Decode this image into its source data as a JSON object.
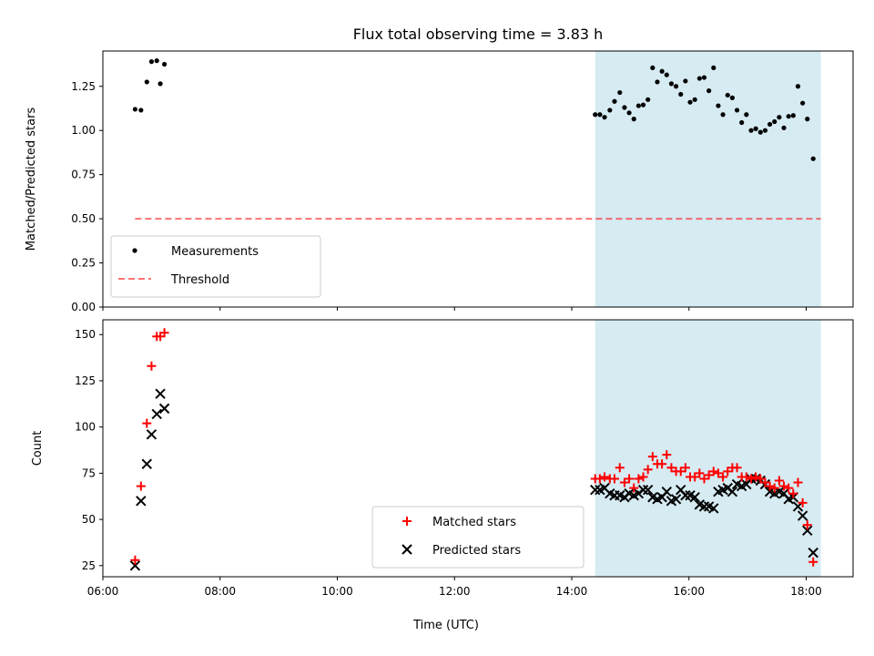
{
  "title": "Flux total observing time = 3.83 h",
  "colors": {
    "shade": "#add8e6",
    "threshold": "#ff0000",
    "measurement": "#000000",
    "matched": "#ff0000",
    "predicted": "#000000"
  },
  "chart_data": [
    {
      "type": "scatter",
      "panel": "top",
      "ylabel": "Matched/Predicted stars",
      "xlim": [
        6.0,
        18.8
      ],
      "ylim": [
        0.0,
        1.45
      ],
      "yticks": [
        0.0,
        0.25,
        0.5,
        0.75,
        1.0,
        1.25
      ],
      "ytick_labels": [
        "0.00",
        "0.25",
        "0.50",
        "0.75",
        "1.00",
        "1.25"
      ],
      "shaded_span": [
        14.4,
        18.25
      ],
      "threshold": {
        "name": "Threshold",
        "value": 0.5,
        "x_range": [
          6.55,
          18.25
        ]
      },
      "legend": {
        "placement": "lower-left",
        "entries": [
          "Measurements",
          "Threshold"
        ]
      },
      "series": [
        {
          "name": "Measurements",
          "marker": "dot",
          "points": [
            [
              6.55,
              1.12
            ],
            [
              6.65,
              1.115
            ],
            [
              6.75,
              1.275
            ],
            [
              6.83,
              1.39
            ],
            [
              6.92,
              1.395
            ],
            [
              6.98,
              1.265
            ],
            [
              7.05,
              1.375
            ],
            [
              14.4,
              1.09
            ],
            [
              14.48,
              1.09
            ],
            [
              14.56,
              1.075
            ],
            [
              14.65,
              1.115
            ],
            [
              14.73,
              1.165
            ],
            [
              14.82,
              1.215
            ],
            [
              14.9,
              1.13
            ],
            [
              14.98,
              1.1
            ],
            [
              15.06,
              1.065
            ],
            [
              15.14,
              1.14
            ],
            [
              15.22,
              1.145
            ],
            [
              15.3,
              1.175
            ],
            [
              15.38,
              1.355
            ],
            [
              15.46,
              1.275
            ],
            [
              15.54,
              1.335
            ],
            [
              15.62,
              1.315
            ],
            [
              15.7,
              1.265
            ],
            [
              15.78,
              1.25
            ],
            [
              15.86,
              1.205
            ],
            [
              15.94,
              1.28
            ],
            [
              16.02,
              1.16
            ],
            [
              16.1,
              1.175
            ],
            [
              16.18,
              1.295
            ],
            [
              16.26,
              1.3
            ],
            [
              16.34,
              1.225
            ],
            [
              16.42,
              1.355
            ],
            [
              16.5,
              1.14
            ],
            [
              16.58,
              1.09
            ],
            [
              16.66,
              1.2
            ],
            [
              16.74,
              1.185
            ],
            [
              16.82,
              1.115
            ],
            [
              16.9,
              1.045
            ],
            [
              16.98,
              1.09
            ],
            [
              17.06,
              1.0
            ],
            [
              17.14,
              1.01
            ],
            [
              17.22,
              0.99
            ],
            [
              17.3,
              1.0
            ],
            [
              17.38,
              1.035
            ],
            [
              17.46,
              1.05
            ],
            [
              17.54,
              1.075
            ],
            [
              17.62,
              1.015
            ],
            [
              17.7,
              1.08
            ],
            [
              17.78,
              1.085
            ],
            [
              17.86,
              1.25
            ],
            [
              17.94,
              1.155
            ],
            [
              18.02,
              1.065
            ],
            [
              18.12,
              0.84
            ]
          ]
        }
      ]
    },
    {
      "type": "scatter",
      "panel": "bottom",
      "xlabel": "Time (UTC)",
      "ylabel": "Count",
      "xlim": [
        6.0,
        18.8
      ],
      "ylim": [
        19,
        158
      ],
      "xticks": [
        6,
        8,
        10,
        12,
        14,
        16,
        18
      ],
      "xtick_labels": [
        "06:00",
        "08:00",
        "10:00",
        "12:00",
        "14:00",
        "16:00",
        "18:00"
      ],
      "yticks": [
        25,
        50,
        75,
        100,
        125,
        150
      ],
      "ytick_labels": [
        "25",
        "50",
        "75",
        "100",
        "125",
        "150"
      ],
      "shaded_span": [
        14.4,
        18.25
      ],
      "legend": {
        "placement": "lower-center",
        "entries": [
          "Matched stars",
          "Predicted stars"
        ]
      },
      "series": [
        {
          "name": "Matched stars",
          "marker": "plus",
          "points": [
            [
              6.55,
              28
            ],
            [
              6.65,
              68
            ],
            [
              6.75,
              102
            ],
            [
              6.83,
              133
            ],
            [
              6.92,
              149
            ],
            [
              6.98,
              149
            ],
            [
              7.05,
              151
            ],
            [
              14.4,
              72
            ],
            [
              14.48,
              72
            ],
            [
              14.56,
              73
            ],
            [
              14.65,
              72
            ],
            [
              14.73,
              72
            ],
            [
              14.82,
              78
            ],
            [
              14.9,
              70
            ],
            [
              14.98,
              72
            ],
            [
              15.06,
              67
            ],
            [
              15.14,
              72
            ],
            [
              15.22,
              73
            ],
            [
              15.3,
              77
            ],
            [
              15.38,
              84
            ],
            [
              15.46,
              80
            ],
            [
              15.54,
              80
            ],
            [
              15.62,
              85
            ],
            [
              15.7,
              78
            ],
            [
              15.78,
              76
            ],
            [
              15.86,
              76
            ],
            [
              15.94,
              78
            ],
            [
              16.02,
              73
            ],
            [
              16.1,
              73
            ],
            [
              16.18,
              75
            ],
            [
              16.26,
              72
            ],
            [
              16.34,
              74
            ],
            [
              16.42,
              76
            ],
            [
              16.5,
              75
            ],
            [
              16.58,
              73
            ],
            [
              16.66,
              76
            ],
            [
              16.74,
              78
            ],
            [
              16.82,
              78
            ],
            [
              16.9,
              73
            ],
            [
              16.98,
              73
            ],
            [
              17.06,
              72
            ],
            [
              17.14,
              73
            ],
            [
              17.22,
              72
            ],
            [
              17.3,
              70
            ],
            [
              17.38,
              68
            ],
            [
              17.46,
              67
            ],
            [
              17.54,
              71
            ],
            [
              17.62,
              68
            ],
            [
              17.7,
              67
            ],
            [
              17.78,
              64
            ],
            [
              17.86,
              70
            ],
            [
              17.94,
              59
            ],
            [
              18.02,
              47
            ],
            [
              18.12,
              27
            ]
          ]
        },
        {
          "name": "Predicted stars",
          "marker": "x",
          "points": [
            [
              6.55,
              25
            ],
            [
              6.65,
              60
            ],
            [
              6.75,
              80
            ],
            [
              6.83,
              96
            ],
            [
              6.92,
              107
            ],
            [
              6.98,
              118
            ],
            [
              7.05,
              110
            ],
            [
              14.4,
              66
            ],
            [
              14.48,
              66
            ],
            [
              14.56,
              67
            ],
            [
              14.65,
              64
            ],
            [
              14.73,
              63
            ],
            [
              14.82,
              63
            ],
            [
              14.9,
              62
            ],
            [
              14.98,
              64
            ],
            [
              15.06,
              63
            ],
            [
              15.14,
              64
            ],
            [
              15.22,
              66
            ],
            [
              15.3,
              66
            ],
            [
              15.38,
              62
            ],
            [
              15.46,
              61
            ],
            [
              15.54,
              62
            ],
            [
              15.62,
              65
            ],
            [
              15.7,
              60
            ],
            [
              15.78,
              61
            ],
            [
              15.86,
              66
            ],
            [
              15.94,
              63
            ],
            [
              16.02,
              63
            ],
            [
              16.1,
              62
            ],
            [
              16.18,
              58
            ],
            [
              16.26,
              57
            ],
            [
              16.34,
              57
            ],
            [
              16.42,
              56
            ],
            [
              16.5,
              65
            ],
            [
              16.58,
              66
            ],
            [
              16.66,
              67
            ],
            [
              16.74,
              65
            ],
            [
              16.82,
              69
            ],
            [
              16.9,
              68
            ],
            [
              16.98,
              69
            ],
            [
              17.06,
              72
            ],
            [
              17.14,
              72
            ],
            [
              17.22,
              71
            ],
            [
              17.3,
              69
            ],
            [
              17.38,
              65
            ],
            [
              17.46,
              64
            ],
            [
              17.54,
              65
            ],
            [
              17.62,
              64
            ],
            [
              17.7,
              61
            ],
            [
              17.78,
              62
            ],
            [
              17.86,
              57
            ],
            [
              17.94,
              52
            ],
            [
              18.02,
              44
            ],
            [
              18.12,
              32
            ]
          ]
        }
      ]
    }
  ]
}
